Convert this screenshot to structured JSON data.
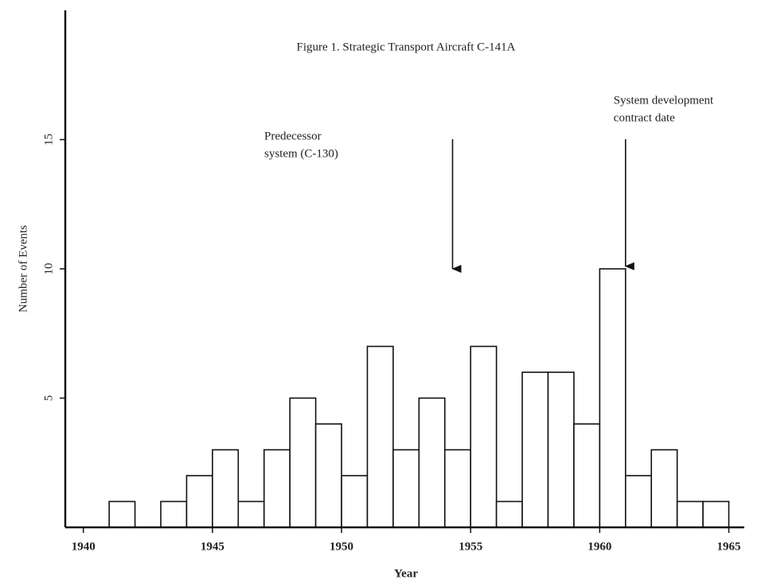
{
  "chart_data": {
    "type": "histogram",
    "title": "Figure 1.  Strategic Transport Aircraft C-141A",
    "xlabel": "Year",
    "ylabel": "Number of Events",
    "bins": [
      1941,
      1942,
      1943,
      1944,
      1945,
      1946,
      1947,
      1948,
      1949,
      1950,
      1951,
      1952,
      1953,
      1954,
      1955,
      1956,
      1957,
      1958,
      1959,
      1960,
      1961,
      1962,
      1963,
      1964,
      1965
    ],
    "counts": [
      1,
      0,
      1,
      2,
      3,
      1,
      3,
      5,
      4,
      2,
      7,
      3,
      5,
      3,
      7,
      1,
      6,
      6,
      4,
      10,
      2,
      3,
      1,
      1
    ],
    "color": "#ffffff",
    "edgecolor": "#111111",
    "xlim": [
      1939.3,
      1965.6
    ],
    "xticks": [
      1940,
      1945,
      1950,
      1955,
      1960,
      1965
    ],
    "ylim": [
      0,
      20
    ],
    "yticks": [
      5,
      10,
      15
    ],
    "annotations": [
      {
        "text": [
          "Predecessor",
          "system (C-130)"
        ],
        "x": 1954.3,
        "y": 10
      },
      {
        "text": [
          "System development",
          "contract date"
        ],
        "x": 1961,
        "y": 10.1
      }
    ]
  }
}
